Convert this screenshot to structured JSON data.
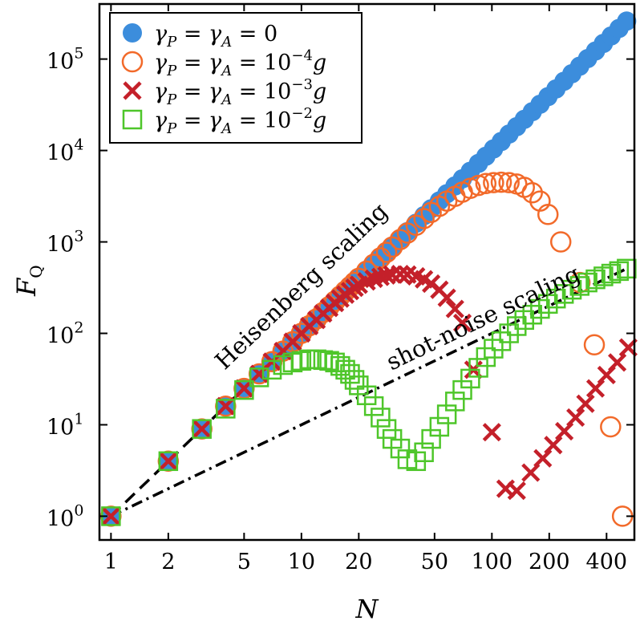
{
  "chart_data": {
    "type": "scatter",
    "xscale": "log",
    "yscale": "log",
    "xlabel": "N",
    "ylabel": "F_Q",
    "xlim": [
      0.87,
      560
    ],
    "ylim": [
      0.55,
      400000
    ],
    "x_ticks": [
      1,
      2,
      5,
      10,
      20,
      50,
      100,
      200,
      400
    ],
    "x_tick_labels": [
      "1",
      "2",
      "5",
      "10",
      "20",
      "50",
      "100",
      "200",
      "400"
    ],
    "y_ticks": [
      1,
      10,
      100,
      1000,
      10000,
      100000
    ],
    "y_tick_labels": [
      {
        "base": "10",
        "exp": "0"
      },
      {
        "base": "10",
        "exp": "1"
      },
      {
        "base": "10",
        "exp": "2"
      },
      {
        "base": "10",
        "exp": "3"
      },
      {
        "base": "10",
        "exp": "4"
      },
      {
        "base": "10",
        "exp": "5"
      }
    ],
    "legend_position": "top-left",
    "series": [
      {
        "name": "γP = γA = 0",
        "label_parts": {
          "lhs": "γ",
          "sub1": "P",
          "mid": " = γ",
          "sub2": "A",
          "rhs": " = 0",
          "exp": "",
          "tail": ""
        },
        "marker": "filled-circle",
        "color": "#3c8ddc",
        "x": [
          1,
          2,
          3,
          4,
          5,
          6,
          7,
          8,
          9,
          10,
          11,
          12,
          13,
          14,
          15,
          16,
          17,
          18,
          19,
          20,
          22,
          24,
          26,
          28,
          30,
          33,
          36,
          40,
          44,
          48,
          53,
          58,
          64,
          70,
          77,
          85,
          93,
          102,
          112,
          123,
          135,
          148,
          163,
          179,
          197,
          217,
          239,
          263,
          289,
          318,
          350,
          385,
          423,
          465,
          510
        ],
        "y": [
          1,
          4,
          9,
          16,
          25,
          36,
          49,
          64,
          81,
          100,
          121,
          144,
          169,
          196,
          225,
          256,
          289,
          324,
          361,
          400,
          484,
          576,
          676,
          784,
          900,
          1089,
          1296,
          1600,
          1936,
          2304,
          2809,
          3364,
          4096,
          4900,
          5929,
          7225,
          8649,
          10404,
          12544,
          15129,
          18225,
          21904,
          26569,
          32041,
          38809,
          47089,
          57121,
          69169,
          83521,
          101124,
          122500,
          148225,
          178929,
          216225,
          260100
        ]
      },
      {
        "name": "γP = γA = 10^-4 g",
        "label_parts": {
          "lhs": "γ",
          "sub1": "P",
          "mid": " = γ",
          "sub2": "A",
          "rhs": " = 10",
          "exp": "−4",
          "tail": "g"
        },
        "marker": "open-circle",
        "color": "#f26a2a",
        "x": [
          1,
          2,
          3,
          4,
          5,
          6,
          7,
          8,
          9,
          10,
          11,
          12,
          13,
          14,
          15,
          16,
          17,
          18,
          19,
          20,
          22,
          24,
          26,
          28,
          30,
          33,
          36,
          40,
          44,
          48,
          53,
          58,
          64,
          70,
          77,
          85,
          93,
          102,
          112,
          123,
          135,
          148,
          163,
          179,
          197,
          230,
          290,
          345,
          420,
          485
        ],
        "y": [
          1,
          4,
          9,
          16,
          25,
          36,
          49,
          64,
          81,
          100,
          121,
          144,
          169,
          196,
          225,
          256,
          289,
          324,
          361,
          400,
          480,
          570,
          670,
          770,
          880,
          1060,
          1250,
          1520,
          1800,
          2100,
          2450,
          2800,
          3150,
          3500,
          3850,
          4150,
          4350,
          4450,
          4500,
          4450,
          4300,
          3950,
          3450,
          2800,
          2000,
          1000,
          360,
          75,
          9.5,
          1.0
        ]
      },
      {
        "name": "γP = γA = 10^-3 g",
        "label_parts": {
          "lhs": "γ",
          "sub1": "P",
          "mid": " = γ",
          "sub2": "A",
          "rhs": " = 10",
          "exp": "−3",
          "tail": "g"
        },
        "marker": "x",
        "color": "#c4202a",
        "x": [
          1,
          2,
          3,
          4,
          5,
          6,
          7,
          8,
          9,
          10,
          11,
          12,
          13,
          14,
          15,
          16,
          17,
          18,
          19,
          20,
          22,
          24,
          26,
          28,
          30,
          33,
          36,
          40,
          44,
          48,
          53,
          58,
          64,
          70,
          80,
          100,
          118,
          135,
          160,
          185,
          210,
          240,
          275,
          310,
          350,
          400,
          455,
          520
        ],
        "y": [
          1,
          4,
          9,
          16,
          25,
          36,
          49,
          64,
          81,
          100,
          120,
          140,
          165,
          190,
          215,
          240,
          265,
          290,
          315,
          340,
          370,
          395,
          415,
          430,
          440,
          445,
          440,
          420,
          390,
          350,
          300,
          245,
          185,
          130,
          40,
          8.3,
          2.0,
          1.9,
          3.0,
          4.3,
          6.0,
          8.5,
          12,
          17,
          25,
          35,
          48,
          70
        ]
      },
      {
        "name": "γP = γA = 10^-2 g",
        "label_parts": {
          "lhs": "γ",
          "sub1": "P",
          "mid": " = γ",
          "sub2": "A",
          "rhs": " = 10",
          "exp": "−2",
          "tail": "g"
        },
        "marker": "open-square",
        "color": "#4ec62a",
        "x": [
          1,
          2,
          3,
          4,
          5,
          6,
          7,
          8,
          9,
          10,
          11,
          12,
          13,
          14,
          15,
          16,
          17,
          18,
          19,
          20,
          22,
          24,
          26,
          28,
          30,
          33,
          36,
          40,
          44,
          48,
          53,
          58,
          64,
          70,
          77,
          85,
          93,
          102,
          112,
          123,
          135,
          148,
          163,
          179,
          197,
          217,
          239,
          263,
          289,
          318,
          350,
          385,
          423,
          465,
          510
        ],
        "y": [
          1,
          4,
          9,
          15,
          24,
          33,
          40,
          45,
          48,
          50,
          52,
          52,
          51,
          50,
          48,
          44,
          40,
          36,
          31,
          27,
          21,
          16,
          12,
          9,
          7,
          5.5,
          4.2,
          4.0,
          5.0,
          7.0,
          9.5,
          13,
          18,
          24,
          32,
          42,
          55,
          68,
          82,
          100,
          120,
          140,
          160,
          185,
          210,
          240,
          270,
          300,
          330,
          360,
          390,
          420,
          450,
          480,
          510
        ]
      }
    ],
    "reference_lines": [
      {
        "name": "Heisenberg scaling",
        "style": "dashed",
        "relation": "F_Q = N^2",
        "x_range": [
          1,
          520
        ]
      },
      {
        "name": "shot-noise scaling",
        "style": "dash-dot",
        "relation": "F_Q = N",
        "x_range": [
          1,
          500
        ]
      }
    ],
    "annotations": [
      {
        "text": "Heisenberg scaling",
        "near_line": "Heisenberg scaling"
      },
      {
        "text": "shot-noise scaling",
        "near_line": "shot-noise scaling"
      }
    ]
  }
}
